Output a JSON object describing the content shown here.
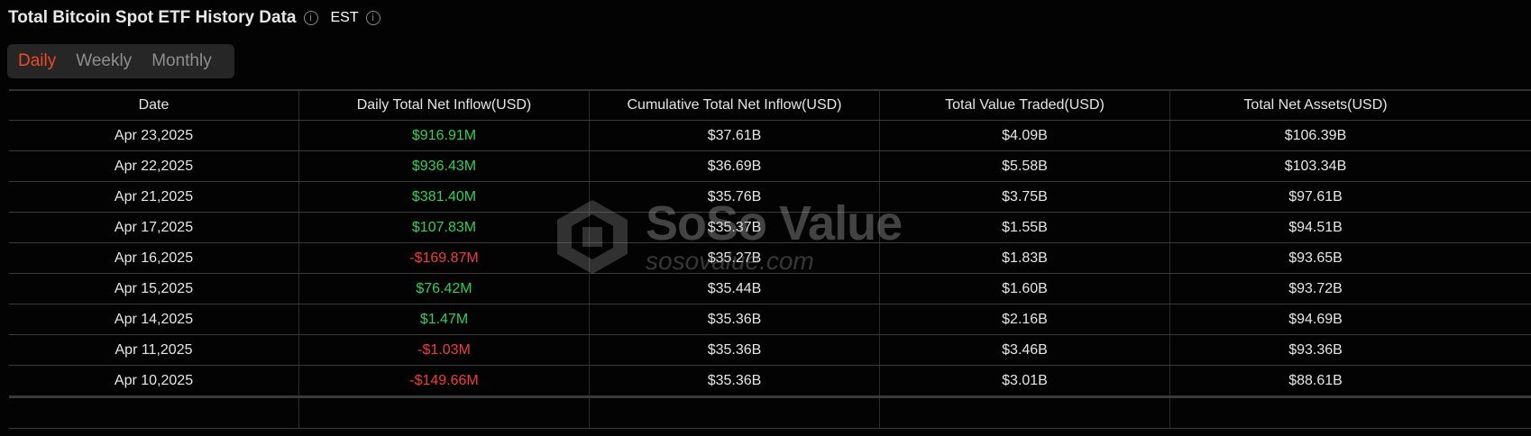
{
  "header": {
    "title": "Total Bitcoin Spot ETF History Data",
    "timezone": "EST"
  },
  "tabs": [
    {
      "label": "Daily",
      "active": true
    },
    {
      "label": "Weekly",
      "active": false
    },
    {
      "label": "Monthly",
      "active": false
    }
  ],
  "colors": {
    "accent": "#f04a23",
    "positive": "#2fcf5a",
    "negative": "#f23c3c"
  },
  "table": {
    "columns": [
      "Date",
      "Daily Total Net Inflow(USD)",
      "Cumulative Total Net Inflow(USD)",
      "Total Value Traded(USD)",
      "Total Net Assets(USD)"
    ],
    "rows": [
      [
        "Apr 23,2025",
        "$916.91M",
        "$37.61B",
        "$4.09B",
        "$106.39B"
      ],
      [
        "Apr 22,2025",
        "$936.43M",
        "$36.69B",
        "$5.58B",
        "$103.34B"
      ],
      [
        "Apr 21,2025",
        "$381.40M",
        "$35.76B",
        "$3.75B",
        "$97.61B"
      ],
      [
        "Apr 17,2025",
        "$107.83M",
        "$35.37B",
        "$1.55B",
        "$94.51B"
      ],
      [
        "Apr 16,2025",
        "-$169.87M",
        "$35.27B",
        "$1.83B",
        "$93.65B"
      ],
      [
        "Apr 15,2025",
        "$76.42M",
        "$35.44B",
        "$1.60B",
        "$93.72B"
      ],
      [
        "Apr 14,2025",
        "$1.47M",
        "$35.36B",
        "$2.16B",
        "$94.69B"
      ],
      [
        "Apr 11,2025",
        "-$1.03M",
        "$35.36B",
        "$3.46B",
        "$93.36B"
      ],
      [
        "Apr 10,2025",
        "-$149.66M",
        "$35.36B",
        "$3.01B",
        "$88.61B"
      ]
    ]
  },
  "watermark": {
    "name": "SoSo Value",
    "url": "sosovalue.com"
  }
}
